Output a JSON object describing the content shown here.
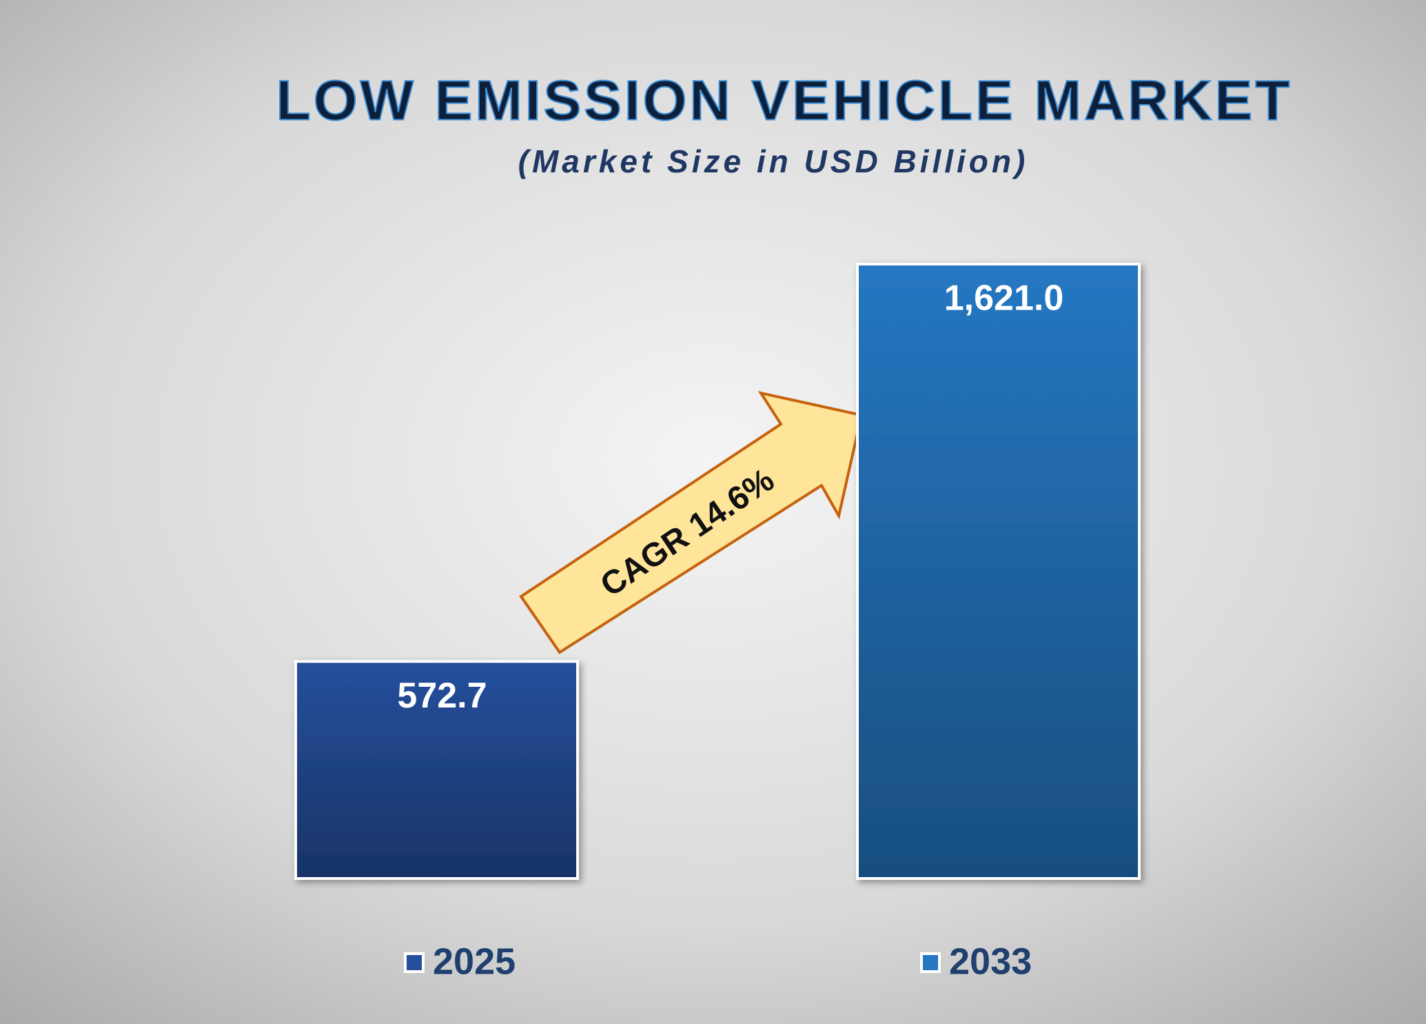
{
  "chart_data": {
    "type": "bar",
    "title": "LOW EMISSION VEHICLE MARKET",
    "subtitle": "(Market Size in USD Billion)",
    "annotation": "CAGR 14.6%",
    "series": [
      {
        "name": "2025",
        "color": "#254f9c",
        "values": [
          572.7
        ],
        "value_labels": [
          "572.7"
        ]
      },
      {
        "name": "2033",
        "color": "#2577c2",
        "values": [
          1621.0
        ],
        "value_labels": [
          "1,621.0"
        ]
      }
    ],
    "legend": "bottom"
  }
}
